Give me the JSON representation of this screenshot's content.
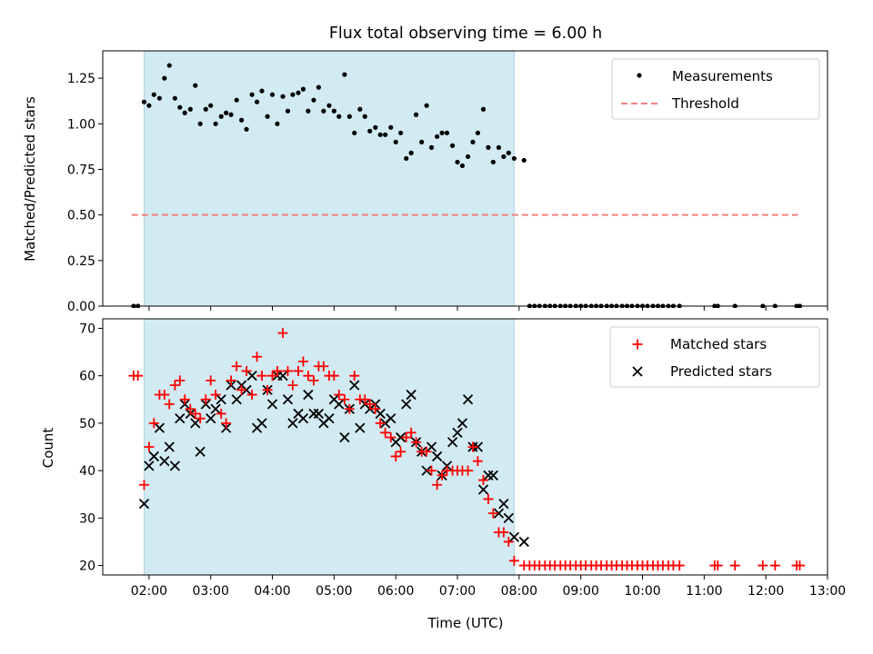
{
  "figure": {
    "title": "Flux total observing time = 6.00 h"
  },
  "colors": {
    "shade": "#add8e6",
    "threshold": "#f08080",
    "matched": "#ff0000",
    "predicted": "#000000",
    "measurement": "#000000"
  },
  "chart_data": [
    {
      "type": "scatter",
      "name": "ratio-panel",
      "ylabel": "Matched/Predicted stars",
      "xlabel": "",
      "x_unit": "hours UTC",
      "xlim": [
        1.25,
        13.0
      ],
      "ylim": [
        0,
        1.4
      ],
      "yticks": [
        0,
        0.25,
        0.5,
        0.75,
        1.0,
        1.25
      ],
      "ytick_labels": [
        "0.00",
        "0.25",
        "0.50",
        "0.75",
        "1.00",
        "1.25"
      ],
      "grid": false,
      "legend_position": "top-right",
      "shaded_span": [
        1.92,
        7.92
      ],
      "threshold": {
        "label": "Threshold",
        "value": 0.5,
        "x_range": [
          1.72,
          12.52
        ]
      },
      "legend": [
        "Measurements",
        "Threshold"
      ],
      "measurements": {
        "x": [
          1.75,
          1.82,
          1.92,
          2.0,
          2.08,
          2.17,
          2.25,
          2.33,
          2.42,
          2.5,
          2.58,
          2.67,
          2.75,
          2.83,
          2.92,
          3.0,
          3.08,
          3.17,
          3.25,
          3.33,
          3.42,
          3.5,
          3.58,
          3.67,
          3.75,
          3.83,
          3.92,
          4.0,
          4.08,
          4.17,
          4.25,
          4.33,
          4.42,
          4.5,
          4.58,
          4.67,
          4.75,
          4.83,
          4.92,
          5.0,
          5.08,
          5.17,
          5.25,
          5.33,
          5.42,
          5.5,
          5.58,
          5.67,
          5.75,
          5.83,
          5.92,
          6.0,
          6.08,
          6.17,
          6.25,
          6.33,
          6.42,
          6.5,
          6.58,
          6.67,
          6.75,
          6.83,
          6.92,
          7.0,
          7.08,
          7.17,
          7.25,
          7.33,
          7.42,
          7.5,
          7.58,
          7.67,
          7.75,
          7.83,
          7.92,
          8.08,
          8.17,
          8.25,
          8.33,
          8.42,
          8.5,
          8.58,
          8.67,
          8.75,
          8.83,
          8.92,
          9.0,
          9.08,
          9.17,
          9.25,
          9.33,
          9.42,
          9.5,
          9.58,
          9.67,
          9.75,
          9.83,
          9.92,
          10.0,
          10.08,
          10.17,
          10.25,
          10.33,
          10.42,
          10.5,
          10.6,
          11.17,
          11.22,
          11.5,
          11.95,
          12.15,
          12.5,
          12.55
        ],
        "y": [
          0.0,
          0.0,
          1.12,
          1.1,
          1.16,
          1.14,
          1.25,
          1.32,
          1.14,
          1.09,
          1.06,
          1.08,
          1.21,
          1.0,
          1.08,
          1.1,
          1.0,
          1.04,
          1.06,
          1.05,
          1.13,
          1.02,
          0.97,
          1.16,
          1.12,
          1.18,
          1.04,
          1.16,
          1.0,
          1.15,
          1.07,
          1.16,
          1.17,
          1.19,
          1.07,
          1.13,
          1.2,
          1.07,
          1.1,
          1.07,
          1.04,
          1.27,
          1.04,
          0.95,
          1.08,
          1.04,
          0.96,
          0.98,
          0.94,
          0.94,
          0.98,
          0.9,
          0.95,
          0.81,
          0.84,
          1.05,
          0.9,
          1.1,
          0.87,
          0.93,
          0.95,
          0.95,
          0.88,
          0.79,
          0.77,
          0.82,
          0.9,
          0.95,
          1.08,
          0.87,
          0.79,
          0.87,
          0.82,
          0.84,
          0.81,
          0.8,
          0,
          0,
          0,
          0,
          0,
          0,
          0,
          0,
          0,
          0,
          0,
          0,
          0,
          0,
          0,
          0,
          0,
          0,
          0,
          0,
          0,
          0,
          0,
          0,
          0,
          0,
          0,
          0,
          0,
          0,
          0,
          0,
          0,
          0,
          0,
          0,
          0
        ]
      }
    },
    {
      "type": "scatter",
      "name": "count-panel",
      "ylabel": "Count",
      "xlabel": "Time (UTC)",
      "x_unit": "hours UTC",
      "xlim": [
        1.25,
        13.0
      ],
      "ylim": [
        18,
        72
      ],
      "yticks": [
        20,
        30,
        40,
        50,
        60,
        70
      ],
      "ytick_labels": [
        "20",
        "30",
        "40",
        "50",
        "60",
        "70"
      ],
      "xticks": [
        2,
        3,
        4,
        5,
        6,
        7,
        8,
        9,
        10,
        11,
        12,
        13
      ],
      "xtick_labels": [
        "02:00",
        "03:00",
        "04:00",
        "05:00",
        "06:00",
        "07:00",
        "08:00",
        "09:00",
        "10:00",
        "11:00",
        "12:00",
        "13:00"
      ],
      "grid": false,
      "legend_position": "top-right",
      "shaded_span": [
        1.92,
        7.92
      ],
      "legend": [
        "Matched stars",
        "Predicted stars"
      ],
      "matched": {
        "x": [
          1.75,
          1.82,
          1.92,
          2.0,
          2.08,
          2.17,
          2.25,
          2.33,
          2.42,
          2.5,
          2.58,
          2.67,
          2.75,
          2.83,
          2.92,
          3.0,
          3.08,
          3.17,
          3.25,
          3.33,
          3.42,
          3.5,
          3.58,
          3.67,
          3.75,
          3.83,
          3.92,
          4.0,
          4.08,
          4.17,
          4.25,
          4.33,
          4.42,
          4.5,
          4.58,
          4.67,
          4.75,
          4.83,
          4.92,
          5.0,
          5.08,
          5.17,
          5.25,
          5.33,
          5.42,
          5.5,
          5.58,
          5.67,
          5.75,
          5.83,
          5.92,
          6.0,
          6.08,
          6.17,
          6.25,
          6.33,
          6.42,
          6.5,
          6.58,
          6.67,
          6.75,
          6.83,
          6.92,
          7.0,
          7.08,
          7.17,
          7.25,
          7.33,
          7.42,
          7.5,
          7.58,
          7.67,
          7.75,
          7.83,
          7.92,
          8.08,
          8.17,
          8.25,
          8.33,
          8.42,
          8.5,
          8.58,
          8.67,
          8.75,
          8.83,
          8.92,
          9.0,
          9.08,
          9.17,
          9.25,
          9.33,
          9.42,
          9.5,
          9.58,
          9.67,
          9.75,
          9.83,
          9.92,
          10.0,
          10.08,
          10.17,
          10.25,
          10.33,
          10.42,
          10.5,
          10.6,
          11.17,
          11.22,
          11.5,
          11.95,
          12.15,
          12.5,
          12.55
        ],
        "y": [
          60,
          60,
          37,
          45,
          50,
          56,
          56,
          54,
          58,
          59,
          55,
          53,
          52,
          51,
          55,
          59,
          56,
          52,
          50,
          59,
          62,
          57,
          61,
          56,
          64,
          60,
          57,
          60,
          61,
          69,
          61,
          58,
          61,
          63,
          60,
          59,
          62,
          62,
          60,
          60,
          56,
          55,
          53,
          60,
          55,
          55,
          54,
          53,
          50,
          48,
          47,
          43,
          44,
          47,
          48,
          46,
          44,
          44,
          40,
          37,
          39,
          40,
          40,
          40,
          40,
          40,
          45,
          42,
          38,
          34,
          31,
          27,
          27,
          25,
          21,
          20,
          20,
          20,
          20,
          20,
          20,
          20,
          20,
          20,
          20,
          20,
          20,
          20,
          20,
          20,
          20,
          20,
          20,
          20,
          20,
          20,
          20,
          20,
          20,
          20,
          20,
          20,
          20,
          20,
          20,
          20,
          20,
          20,
          20,
          20,
          20,
          20,
          20
        ]
      },
      "predicted": {
        "x": [
          1.92,
          2.0,
          2.08,
          2.17,
          2.25,
          2.33,
          2.42,
          2.5,
          2.58,
          2.67,
          2.75,
          2.83,
          2.92,
          3.0,
          3.08,
          3.17,
          3.25,
          3.33,
          3.42,
          3.5,
          3.58,
          3.67,
          3.75,
          3.83,
          3.92,
          4.0,
          4.08,
          4.17,
          4.25,
          4.33,
          4.42,
          4.5,
          4.58,
          4.67,
          4.75,
          4.83,
          4.92,
          5.0,
          5.08,
          5.17,
          5.25,
          5.33,
          5.42,
          5.5,
          5.58,
          5.67,
          5.75,
          5.83,
          5.92,
          6.0,
          6.08,
          6.17,
          6.25,
          6.33,
          6.42,
          6.5,
          6.58,
          6.67,
          6.75,
          6.83,
          6.92,
          7.0,
          7.08,
          7.17,
          7.25,
          7.33,
          7.42,
          7.5,
          7.58,
          7.67,
          7.75,
          7.83,
          7.92,
          8.08
        ],
        "y": [
          33,
          41,
          43,
          49,
          42,
          45,
          41,
          51,
          54,
          52,
          50,
          44,
          54,
          51,
          53,
          55,
          49,
          58,
          55,
          58,
          57,
          60,
          49,
          50,
          57,
          54,
          60,
          60,
          55,
          50,
          52,
          51,
          56,
          52,
          52,
          50,
          51,
          55,
          54,
          47,
          53,
          58,
          49,
          54,
          53,
          54,
          52,
          50,
          51,
          46,
          47,
          54,
          56,
          46,
          44,
          40,
          45,
          43,
          39,
          41,
          46,
          48,
          50,
          55,
          45,
          45,
          36,
          39,
          39,
          31,
          33,
          30,
          26,
          25
        ]
      }
    }
  ]
}
